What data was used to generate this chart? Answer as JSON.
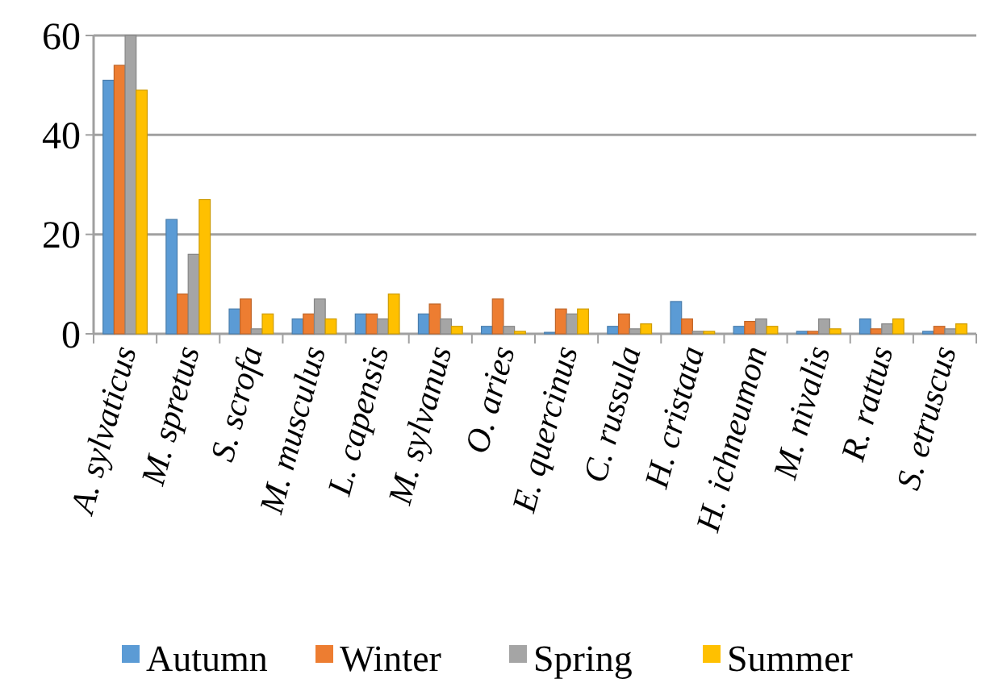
{
  "chart_data": {
    "type": "bar",
    "categories": [
      "A. sylvaticus",
      "M. spretus",
      "S. scrofa",
      "M. musculus",
      "L. capensis",
      "M. sylvanus",
      "O. aries",
      "E. quercinus",
      "C. russula",
      "H. cristata",
      "H. ichneumon",
      "M. nivalis",
      "R. rattus",
      "S. etruscus"
    ],
    "series": [
      {
        "name": "Autumn",
        "color": "#5b9bd5",
        "values": [
          51,
          23,
          5,
          3,
          4,
          4,
          1.5,
          0.3,
          1.5,
          6.5,
          1.5,
          0.5,
          3,
          0.5
        ]
      },
      {
        "name": "Winter",
        "color": "#ed7d31",
        "values": [
          54,
          8,
          7,
          4,
          4,
          6,
          7,
          5,
          4,
          3,
          2.5,
          0.5,
          1,
          1.5
        ]
      },
      {
        "name": "Spring",
        "color": "#a5a5a5",
        "values": [
          60,
          16,
          1,
          7,
          3,
          3,
          1.5,
          4,
          1,
          0.5,
          3,
          3,
          2,
          1
        ]
      },
      {
        "name": "Summer",
        "color": "#ffc000",
        "values": [
          49,
          27,
          4,
          3,
          8,
          1.5,
          0.5,
          5,
          2,
          0.5,
          1.5,
          1,
          3,
          2
        ]
      }
    ],
    "ylim": [
      0,
      60
    ],
    "yticks": [
      0,
      20,
      40,
      60
    ],
    "grid": "y",
    "legend": "bottom"
  }
}
